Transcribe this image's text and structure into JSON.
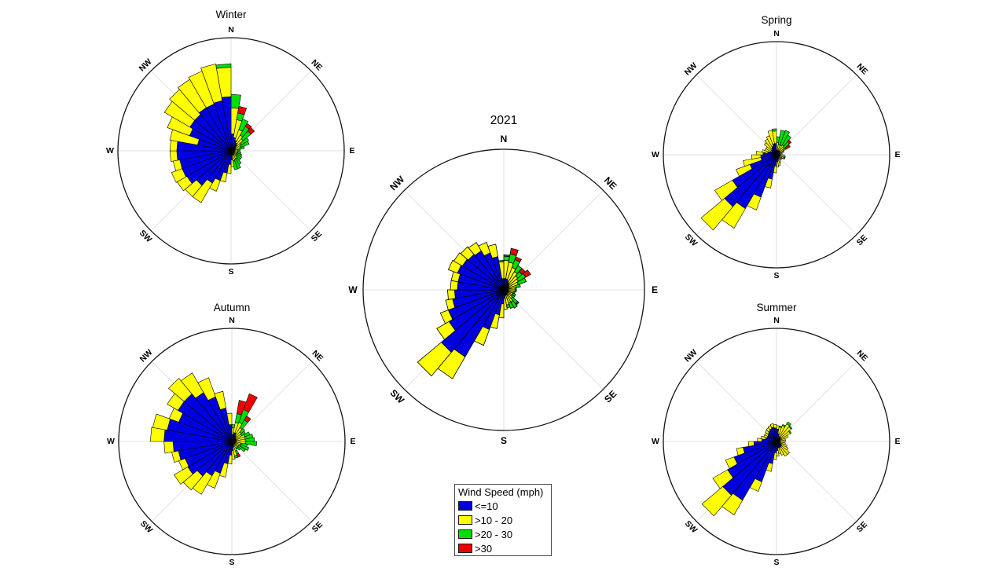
{
  "compass_labels": [
    "N",
    "NE",
    "E",
    "SE",
    "S",
    "SW",
    "W",
    "NW"
  ],
  "style": {
    "background": "#FFFFFF",
    "ring_color": "#141414",
    "spoke_color": "#E2E2E2",
    "bar_edge_color": "#000000"
  },
  "legend": {
    "title": "Wind Speed (mph)",
    "entries": [
      {
        "label": "<=10",
        "color": "#0000E0"
      },
      {
        "label": ">10 - 20",
        "color": "#FFFF00"
      },
      {
        "label": ">20 - 30",
        "color": "#00DF00"
      },
      {
        "label": ">30",
        "color": "#EF0000"
      }
    ]
  },
  "chart_data": [
    {
      "title": "Winter",
      "type": "bar",
      "variant": "wind_rose_stacked_polar",
      "bin_start_deg": 5,
      "bin_step_deg": 10,
      "r_axis_max_percent": 100,
      "grid": true,
      "series": [
        {
          "name": "<=10",
          "color": "#0000E0",
          "values": [
            15,
            12,
            10,
            8,
            7,
            5,
            4,
            4,
            3,
            3,
            3,
            3,
            3,
            3,
            4,
            4,
            4,
            8,
            12,
            20,
            28,
            33,
            40,
            45,
            46,
            46,
            48,
            48,
            30,
            39,
            42,
            42,
            44,
            44,
            45,
            48
          ]
        },
        {
          "name": ">10 - 20",
          "color": "#FFFF00",
          "values": [
            23,
            16,
            10,
            8,
            7,
            5,
            5,
            4,
            3,
            3,
            3,
            3,
            3,
            3,
            4,
            4,
            5,
            6,
            8,
            8,
            10,
            20,
            13,
            10,
            10,
            6,
            6,
            6,
            25,
            21,
            26,
            29,
            29,
            31,
            33,
            26
          ]
        },
        {
          "name": ">20 - 30",
          "color": "#00DF00",
          "values": [
            12,
            6,
            10,
            9,
            9,
            8,
            8,
            4,
            2,
            2,
            3,
            4,
            5,
            5,
            6,
            9,
            8,
            0,
            0,
            0,
            0,
            0,
            0,
            0,
            0,
            0,
            0,
            0,
            0,
            0,
            0,
            0,
            0,
            0,
            0,
            3
          ]
        },
        {
          "name": ">30",
          "color": "#EF0000",
          "values": [
            0,
            6,
            0,
            3,
            4,
            0,
            0,
            0,
            0,
            0,
            0,
            0,
            0,
            0,
            0,
            0,
            0,
            0,
            0,
            0,
            0,
            0,
            0,
            0,
            0,
            0,
            0,
            0,
            0,
            0,
            0,
            0,
            0,
            0,
            0,
            0
          ]
        }
      ]
    },
    {
      "title": "Spring",
      "type": "bar",
      "variant": "wind_rose_stacked_polar",
      "bin_start_deg": 5,
      "bin_step_deg": 10,
      "r_axis_max_percent": 100,
      "grid": true,
      "series": [
        {
          "name": "<=10",
          "color": "#0000E0",
          "values": [
            4,
            4,
            4,
            4,
            4,
            3,
            3,
            2,
            2,
            3,
            3,
            3,
            2,
            2,
            3,
            4,
            5,
            6,
            10,
            22,
            40,
            55,
            60,
            45,
            25,
            14,
            14,
            12,
            8,
            6,
            5,
            6,
            7,
            8,
            10,
            10
          ]
        },
        {
          "name": ">10 - 20",
          "color": "#FFFF00",
          "values": [
            7,
            5,
            5,
            6,
            5,
            4,
            3,
            3,
            3,
            4,
            4,
            4,
            3,
            3,
            3,
            4,
            5,
            5,
            6,
            8,
            12,
            20,
            27,
            18,
            13,
            16,
            8,
            6,
            5,
            5,
            6,
            8,
            9,
            10,
            12,
            11
          ]
        },
        {
          "name": ">20 - 30",
          "color": "#00DF00",
          "values": [
            5,
            13,
            14,
            10,
            6,
            3,
            1,
            0,
            0,
            0,
            1,
            1,
            1,
            0,
            0,
            0,
            0,
            0,
            0,
            0,
            0,
            0,
            0,
            0,
            0,
            0,
            0,
            0,
            0,
            0,
            0,
            0,
            0,
            0,
            0,
            2
          ]
        },
        {
          "name": ">30",
          "color": "#EF0000",
          "values": [
            0,
            0,
            0,
            0,
            2,
            4,
            0,
            0,
            0,
            0,
            0,
            0,
            0,
            0,
            0,
            0,
            0,
            0,
            0,
            0,
            0,
            0,
            0,
            0,
            0,
            0,
            0,
            0,
            0,
            0,
            0,
            0,
            0,
            0,
            0,
            0
          ]
        }
      ]
    },
    {
      "title": "2021",
      "type": "bar",
      "variant": "wind_rose_stacked_polar",
      "bin_start_deg": 5,
      "bin_step_deg": 10,
      "r_axis_max_percent": 100,
      "grid": true,
      "series": [
        {
          "name": "<=10",
          "color": "#0000E0",
          "values": [
            8,
            8,
            7,
            6,
            5,
            4,
            4,
            3,
            3,
            3,
            3,
            3,
            3,
            3,
            4,
            4,
            4,
            6,
            10,
            18,
            30,
            55,
            58,
            45,
            42,
            37,
            35,
            33,
            33,
            35,
            34,
            33,
            32,
            28,
            24,
            8
          ]
        },
        {
          "name": ">10 - 20",
          "color": "#FFFF00",
          "values": [
            13,
            12,
            10,
            9,
            8,
            8,
            7,
            6,
            5,
            5,
            4,
            4,
            4,
            5,
            6,
            6,
            7,
            8,
            10,
            10,
            12,
            18,
            22,
            10,
            6,
            5,
            5,
            5,
            5,
            7,
            7,
            7,
            7,
            8,
            9,
            12
          ]
        },
        {
          "name": ">20 - 30",
          "color": "#00DF00",
          "values": [
            3,
            6,
            6,
            5,
            4,
            6,
            6,
            3,
            1,
            1,
            1,
            2,
            2,
            5,
            5,
            4,
            2,
            0,
            0,
            0,
            0,
            0,
            0,
            0,
            0,
            0,
            0,
            0,
            0,
            0,
            0,
            0,
            0,
            0,
            0,
            1
          ]
        },
        {
          "name": ">30",
          "color": "#EF0000",
          "values": [
            1,
            4,
            2,
            0,
            3,
            4,
            0,
            0,
            0,
            0,
            0,
            0,
            0,
            1,
            0,
            0,
            0,
            0,
            0,
            0,
            0,
            0,
            0,
            0,
            0,
            0,
            0,
            0,
            0,
            0,
            0,
            0,
            0,
            0,
            0,
            0
          ]
        }
      ]
    },
    {
      "title": "Autumn",
      "type": "bar",
      "variant": "wind_rose_stacked_polar",
      "bin_start_deg": 5,
      "bin_step_deg": 10,
      "r_axis_max_percent": 100,
      "grid": true,
      "series": [
        {
          "name": "<=10",
          "color": "#0000E0",
          "values": [
            6,
            8,
            8,
            6,
            5,
            4,
            4,
            4,
            4,
            4,
            3,
            3,
            3,
            3,
            3,
            4,
            5,
            8,
            12,
            20,
            30,
            35,
            40,
            45,
            44,
            48,
            52,
            60,
            58,
            50,
            55,
            55,
            50,
            42,
            30,
            15
          ]
        },
        {
          "name": ">10 - 20",
          "color": "#FFFF00",
          "values": [
            6,
            9,
            10,
            8,
            6,
            6,
            8,
            8,
            8,
            8,
            5,
            5,
            4,
            4,
            4,
            5,
            8,
            8,
            8,
            12,
            14,
            19,
            16,
            14,
            6,
            6,
            8,
            12,
            13,
            9,
            11,
            18,
            20,
            18,
            15,
            10
          ]
        },
        {
          "name": ">20 - 30",
          "color": "#00DF00",
          "values": [
            3,
            8,
            12,
            8,
            4,
            4,
            5,
            7,
            8,
            10,
            6,
            8,
            7,
            3,
            1,
            3,
            2,
            0,
            0,
            0,
            0,
            0,
            0,
            0,
            0,
            0,
            0,
            0,
            0,
            0,
            0,
            0,
            0,
            0,
            0,
            0
          ]
        },
        {
          "name": ">30",
          "color": "#EF0000",
          "values": [
            0,
            12,
            15,
            4,
            0,
            0,
            0,
            0,
            0,
            0,
            0,
            0,
            0,
            0,
            0,
            3,
            0,
            0,
            0,
            0,
            0,
            0,
            0,
            0,
            0,
            0,
            0,
            0,
            0,
            0,
            0,
            0,
            0,
            0,
            0,
            0
          ]
        }
      ]
    },
    {
      "title": "Summer",
      "type": "bar",
      "variant": "wind_rose_stacked_polar",
      "bin_start_deg": 5,
      "bin_step_deg": 10,
      "r_axis_max_percent": 100,
      "grid": true,
      "series": [
        {
          "name": "<=10",
          "color": "#0000E0",
          "values": [
            11,
            7,
            5,
            5,
            5,
            4,
            4,
            3,
            3,
            3,
            3,
            4,
            5,
            6,
            6,
            6,
            6,
            8,
            10,
            20,
            38,
            60,
            62,
            50,
            40,
            30,
            20,
            13,
            10,
            9,
            9,
            10,
            11,
            12,
            13,
            12
          ]
        },
        {
          "name": ">10 - 20",
          "color": "#FFFF00",
          "values": [
            3,
            6,
            10,
            13,
            12,
            10,
            7,
            5,
            5,
            4,
            5,
            6,
            7,
            9,
            9,
            7,
            5,
            5,
            6,
            7,
            9,
            15,
            24,
            15,
            8,
            6,
            5,
            4,
            4,
            3,
            3,
            3,
            3,
            3,
            3,
            3
          ]
        },
        {
          "name": ">20 - 30",
          "color": "#00DF00",
          "values": [
            0,
            1,
            1,
            2,
            1,
            1,
            0,
            0,
            0,
            0,
            0,
            0,
            0,
            0,
            0,
            0,
            0,
            0,
            0,
            0,
            0,
            0,
            0,
            0,
            0,
            0,
            0,
            0,
            0,
            0,
            0,
            0,
            0,
            0,
            0,
            0
          ]
        },
        {
          "name": ">30",
          "color": "#EF0000",
          "values": [
            0,
            0,
            0,
            0,
            0,
            0,
            0,
            0,
            0,
            0,
            0,
            0,
            0,
            0,
            0,
            0,
            0,
            0,
            0,
            0,
            0,
            0,
            0,
            0,
            0,
            0,
            0,
            0,
            0,
            0,
            0,
            0,
            0,
            0,
            0,
            0
          ]
        }
      ]
    }
  ]
}
